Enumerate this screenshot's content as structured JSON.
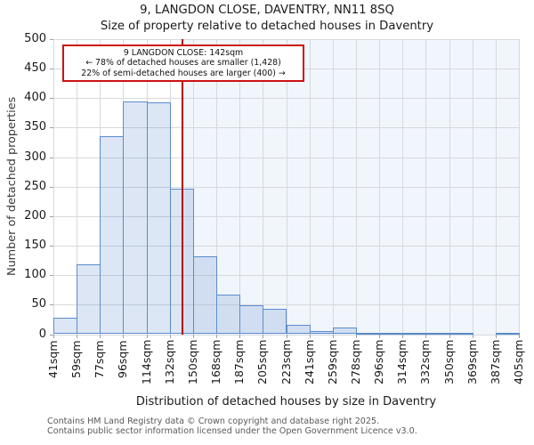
{
  "header": {
    "title": "9, LANGDON CLOSE, DAVENTRY, NN11 8SQ",
    "subtitle": "Size of property relative to detached houses in Daventry"
  },
  "chart_data": {
    "type": "bar",
    "title": "9, LANGDON CLOSE, DAVENTRY, NN11 8SQ",
    "subtitle": "Size of property relative to detached houses in Daventry",
    "xlabel": "Distribution of detached houses by size in Daventry",
    "ylabel": "Number of detached properties",
    "ylim": [
      0,
      500
    ],
    "ytick_step": 50,
    "grid": true,
    "legend": false,
    "bin_edges": [
      41,
      59,
      77,
      96,
      114,
      132,
      150,
      168,
      187,
      205,
      223,
      241,
      259,
      278,
      296,
      314,
      332,
      350,
      369,
      387,
      405
    ],
    "bin_edge_labels": [
      "41sqm",
      "59sqm",
      "77sqm",
      "96sqm",
      "114sqm",
      "132sqm",
      "150sqm",
      "168sqm",
      "187sqm",
      "205sqm",
      "223sqm",
      "241sqm",
      "259sqm",
      "278sqm",
      "296sqm",
      "314sqm",
      "332sqm",
      "350sqm",
      "369sqm",
      "387sqm",
      "405sqm"
    ],
    "values": [
      28,
      118,
      335,
      395,
      393,
      246,
      132,
      67,
      49,
      43,
      16,
      6,
      12,
      1,
      1,
      1,
      1,
      1,
      0,
      3
    ],
    "marker": {
      "label": "9 LANGDON CLOSE",
      "value_sqm": 142,
      "line_color": "#b30000"
    },
    "annotation": {
      "lines": [
        "9 LANGDON CLOSE: 142sqm",
        "← 78% of detached houses are smaller (1,428)",
        "22% of semi-detached houses are larger (400) →"
      ],
      "border_color": "#cc1111"
    },
    "colors": {
      "bar_fill": "#dde7f6",
      "bar_border": "#5b8cce",
      "gridline": "#d6d9dd",
      "right_shade": "#f1f5fc",
      "marker_line": "#b30000"
    }
  },
  "footer": {
    "line1": "Contains HM Land Registry data © Crown copyright and database right 2025.",
    "line2": "Contains public sector information licensed under the Open Government Licence v3.0."
  }
}
